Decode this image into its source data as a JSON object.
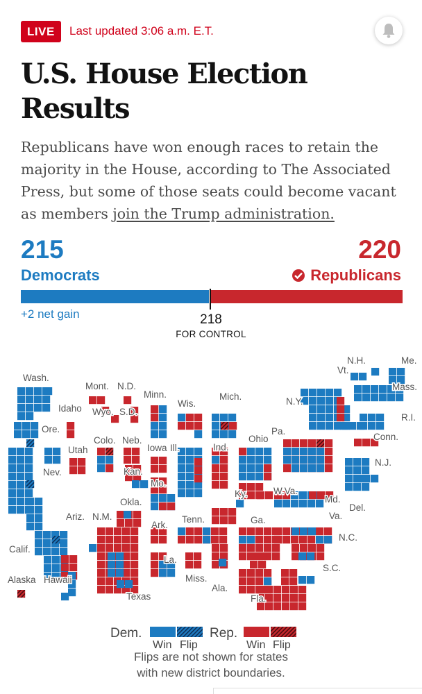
{
  "header": {
    "live_label": "LIVE",
    "updated_text": "Last updated 3:06 a.m. E.T.",
    "notify_icon": "bell-icon"
  },
  "title": "U.S. House Election Results",
  "dek": {
    "text": "Republicans have won enough races to retain the majority in the House, according to The Associated Press, but some of those seats could become vacant as members ",
    "link_text": "join the Trump administration."
  },
  "tally": {
    "dem_seats": "215",
    "dem_label": "Democrats",
    "rep_seats": "220",
    "rep_label": "Republicans",
    "dem_share": 0.494,
    "rep_share": 0.506,
    "net_gain": "+2 net gain",
    "control_number": "218",
    "control_label": "FOR CONTROL",
    "winner_icon": "checkmark-icon"
  },
  "colors": {
    "dem": "#1d7bc1",
    "rep": "#c8272d",
    "live_red": "#d0021b"
  },
  "map": {
    "state_labels": [
      "Wash.",
      "Mont.",
      "N.D.",
      "Minn.",
      "Mich.",
      "N.H.",
      "Vt.",
      "Me.",
      "Mass.",
      "Idaho",
      "Wyo.",
      "S.D.",
      "Wis.",
      "N.Y.",
      "R.I.",
      "Ore.",
      "Colo.",
      "Neb.",
      "Iowa",
      "Ill.",
      "Ind.",
      "Ohio",
      "Pa.",
      "Conn.",
      "Utah",
      "N.J.",
      "Nev.",
      "Kan.",
      "Mo.",
      "Ky.",
      "W.Va.",
      "Md.",
      "Del.",
      "Okla.",
      "Ariz.",
      "N.M.",
      "Ark.",
      "Tenn.",
      "Ga.",
      "Va.",
      "N.C.",
      "Calif.",
      "La.",
      "S.C.",
      "Miss.",
      "Ala.",
      "Alaska",
      "Hawaii",
      "Texas",
      "Fla."
    ]
  },
  "legend": {
    "dem_label": "Dem.",
    "rep_label": "Rep.",
    "win_label": "Win",
    "flip_label": "Flip",
    "note_line1": "Flips are not shown for states",
    "note_line2": "with new district boundaries."
  }
}
